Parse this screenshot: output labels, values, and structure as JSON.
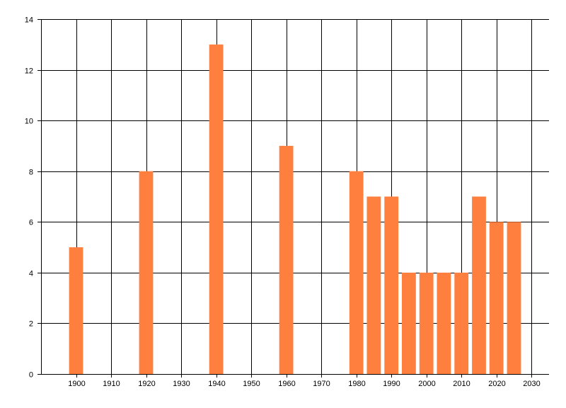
{
  "chart_data": {
    "type": "bar",
    "x": [
      1900,
      1920,
      1940,
      1960,
      1980,
      1985,
      1990,
      1995,
      2000,
      2005,
      2010,
      2015,
      2020,
      2025
    ],
    "values": [
      5,
      8,
      13,
      9,
      8,
      7,
      7,
      4,
      4,
      4,
      4,
      7,
      6,
      6
    ],
    "xlim": [
      1890,
      2035
    ],
    "ylim": [
      0,
      14
    ],
    "x_ticks": [
      1900,
      1910,
      1920,
      1930,
      1940,
      1950,
      1960,
      1970,
      1980,
      1990,
      2000,
      2010,
      2020,
      2030
    ],
    "y_ticks": [
      0,
      2,
      4,
      6,
      8,
      10,
      12,
      14
    ],
    "bar_width_years": 4,
    "bar_color": "#ff7f3f",
    "grid": true,
    "title": "",
    "xlabel": "",
    "ylabel": ""
  }
}
